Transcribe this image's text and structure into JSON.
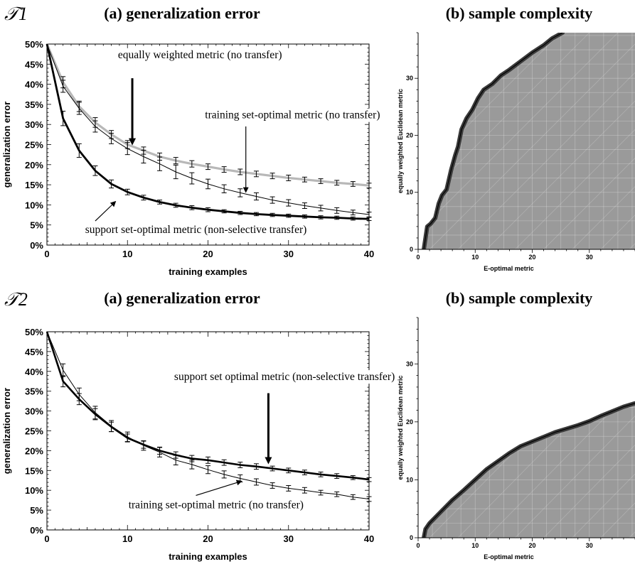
{
  "rows": [
    {
      "task_label": "𝒯1",
      "left_title": "(a) generalization error",
      "right_title": "(b) sample complexity"
    },
    {
      "task_label": "𝒯2",
      "left_title": "(a) generalization error",
      "right_title": "(b) sample complexity"
    }
  ],
  "chart_data": [
    {
      "type": "line",
      "title": "(a) generalization error",
      "xlabel": "training examples",
      "ylabel": "generalization error",
      "xlim": [
        0,
        40
      ],
      "ylim": [
        0,
        50
      ],
      "x_ticks": [
        0,
        10,
        20,
        30,
        40
      ],
      "y_ticks": [
        "0%",
        "5%",
        "10%",
        "15%",
        "20%",
        "25%",
        "30%",
        "35%",
        "40%",
        "45%",
        "50%"
      ],
      "x": [
        0,
        2,
        4,
        6,
        8,
        10,
        12,
        14,
        16,
        18,
        20,
        22,
        24,
        26,
        28,
        30,
        32,
        34,
        36,
        38,
        40
      ],
      "series": [
        {
          "id": "equal",
          "color": "#b8b8b8",
          "width": 3.2,
          "values": [
            50,
            40.5,
            34.5,
            30.5,
            27.5,
            25,
            23.5,
            22,
            21,
            20.2,
            19.5,
            18.8,
            18.2,
            17.7,
            17.2,
            16.7,
            16.3,
            15.9,
            15.5,
            15.2,
            14.8
          ],
          "errors": [
            0,
            1.4,
            1.3,
            1.2,
            1.0,
            1.0,
            0.9,
            0.9,
            0.8,
            0.8,
            0.7,
            0.7,
            0.7,
            0.7,
            0.7,
            0.7,
            0.6,
            0.6,
            0.6,
            0.6,
            0.6
          ]
        },
        {
          "id": "training",
          "color": "#000000",
          "width": 1.0,
          "values": [
            50,
            39.5,
            34,
            29.5,
            26.5,
            24,
            22,
            20.2,
            18.2,
            16.6,
            15.2,
            14,
            13,
            12.1,
            11.2,
            10.5,
            9.8,
            9.2,
            8.6,
            8.1,
            7.6
          ],
          "errors": [
            0,
            1.5,
            1.5,
            1.4,
            1.3,
            1.5,
            1.6,
            1.7,
            1.7,
            1.4,
            1.2,
            1.0,
            1.0,
            0.9,
            0.8,
            0.8,
            0.7,
            0.7,
            0.7,
            0.6,
            0.6
          ]
        },
        {
          "id": "support",
          "color": "#000000",
          "width": 2.8,
          "values": [
            50,
            31.5,
            23.5,
            18.5,
            15.2,
            13.2,
            11.8,
            10.7,
            9.9,
            9.3,
            8.8,
            8.4,
            8.0,
            7.7,
            7.5,
            7.3,
            7.1,
            6.9,
            6.8,
            6.6,
            6.5
          ],
          "errors": [
            0,
            1.8,
            1.7,
            1.2,
            1.0,
            0.7,
            0.6,
            0.5,
            0.5,
            0.5,
            0.5,
            0.4,
            0.4,
            0.4,
            0.4,
            0.4,
            0.4,
            0.4,
            0.4,
            0.4,
            0.4
          ]
        }
      ],
      "annotations": [
        {
          "text": "equally weighted metric (no transfer)",
          "at": [
            19,
            46.5
          ],
          "arrow_from": [
            10.6,
            41.5
          ],
          "arrow_to": [
            10.6,
            25.5
          ],
          "bold_arrow": true
        },
        {
          "text": "training set-optimal metric (no transfer)",
          "at": [
            30.5,
            31.5
          ],
          "arrow_from": [
            24.7,
            29.5
          ],
          "arrow_to": [
            24.7,
            13.5
          ],
          "bold_arrow": false
        },
        {
          "text": "support set-optimal metric (non-selective transfer)",
          "at": [
            18.5,
            3
          ],
          "arrow_from": [
            6,
            6
          ],
          "arrow_to": [
            8.4,
            10.6
          ],
          "bold_arrow": false
        }
      ]
    },
    {
      "type": "area",
      "title": "(b) sample complexity",
      "xlabel": "E-optimal metric",
      "ylabel": "equally weighted Euclidean metric",
      "xlim": [
        0,
        38
      ],
      "ylim": [
        0,
        38
      ],
      "x_ticks": [
        0,
        10,
        20,
        30
      ],
      "y_ticks": [
        0,
        10,
        20,
        30
      ],
      "boundary": {
        "x": [
          1.0,
          1.3,
          1.6,
          2.2,
          3.0,
          3.6,
          4.2,
          5.0,
          5.8,
          6.5,
          7.0,
          7.6,
          8.5,
          9.5,
          10.5,
          11.5,
          13,
          14.5,
          16,
          18,
          20,
          22,
          23.5,
          25.3
        ],
        "y": [
          0,
          2,
          4,
          4.5,
          5.5,
          8,
          9.5,
          10.5,
          14,
          16.5,
          18,
          21,
          23,
          24.5,
          26.5,
          28,
          29,
          30.5,
          31.5,
          33,
          34.5,
          35.8,
          37,
          38
        ]
      }
    },
    {
      "type": "line",
      "title": "(a) generalization error",
      "xlabel": "training examples",
      "ylabel": "generalization error",
      "xlim": [
        0,
        40
      ],
      "ylim": [
        0,
        50
      ],
      "x_ticks": [
        0,
        10,
        20,
        30,
        40
      ],
      "y_ticks": [
        "0%",
        "5%",
        "10%",
        "15%",
        "20%",
        "25%",
        "30%",
        "35%",
        "40%",
        "45%",
        "50%"
      ],
      "x": [
        0,
        2,
        4,
        6,
        8,
        10,
        12,
        14,
        16,
        18,
        20,
        22,
        24,
        26,
        28,
        30,
        32,
        34,
        36,
        38,
        40
      ],
      "series": [
        {
          "id": "support",
          "color": "#000000",
          "width": 2.6,
          "values": [
            50,
            37.5,
            33,
            29.2,
            26,
            23.2,
            21.5,
            20,
            18.9,
            18,
            17.6,
            17,
            16.4,
            16,
            15.5,
            15,
            14.5,
            14,
            13.6,
            13.2,
            12.7
          ],
          "errors": [
            0,
            1.4,
            1.4,
            1.4,
            1.2,
            1.0,
            0.9,
            0.9,
            0.8,
            0.8,
            0.8,
            0.7,
            0.7,
            0.7,
            0.6,
            0.6,
            0.6,
            0.6,
            0.6,
            0.5,
            0.5
          ]
        },
        {
          "id": "training",
          "color": "#000000",
          "width": 1.0,
          "values": [
            50,
            40.3,
            34.2,
            29.6,
            26.2,
            23.5,
            21.3,
            19.6,
            17.6,
            16.5,
            15.2,
            14,
            13,
            12.1,
            11.2,
            10.5,
            10,
            9.4,
            9,
            8.3,
            7.8
          ],
          "errors": [
            0,
            1.6,
            1.6,
            1.6,
            1.4,
            1.2,
            1.2,
            1.2,
            1.2,
            1.1,
            1.0,
            0.9,
            0.9,
            0.8,
            0.7,
            0.7,
            0.7,
            0.6,
            0.6,
            0.6,
            0.6
          ]
        }
      ],
      "annotations": [
        {
          "text": "support set optimal metric (non-selective transfer)",
          "at": [
            29.5,
            37.8
          ],
          "arrow_from": [
            27.5,
            34.5
          ],
          "arrow_to": [
            27.5,
            17.3
          ],
          "bold_arrow": true
        },
        {
          "text": "training set-optimal metric (no transfer)",
          "at": [
            21,
            5.5
          ],
          "arrow_from": [
            18.5,
            8.7
          ],
          "arrow_to": [
            24,
            12.2
          ],
          "bold_arrow": false
        }
      ]
    },
    {
      "type": "area",
      "title": "(b) sample complexity",
      "xlabel": "E-optimal metric",
      "ylabel": "equally weighted Euclidean metric",
      "xlim": [
        0,
        38
      ],
      "ylim": [
        0,
        38
      ],
      "x_ticks": [
        0,
        10,
        20,
        30
      ],
      "y_ticks": [
        0,
        10,
        20,
        30
      ],
      "boundary": {
        "x": [
          1.0,
          1.3,
          2,
          4,
          6,
          8,
          10,
          12,
          14,
          16,
          18,
          20,
          22,
          24,
          26,
          28,
          30,
          32,
          34,
          36,
          38
        ],
        "y": [
          0,
          1.5,
          2.5,
          4.5,
          6.5,
          8.2,
          10,
          11.8,
          13.2,
          14.6,
          15.8,
          16.6,
          17.4,
          18.2,
          18.8,
          19.4,
          20.1,
          21,
          21.8,
          22.6,
          23.2
        ]
      }
    }
  ]
}
